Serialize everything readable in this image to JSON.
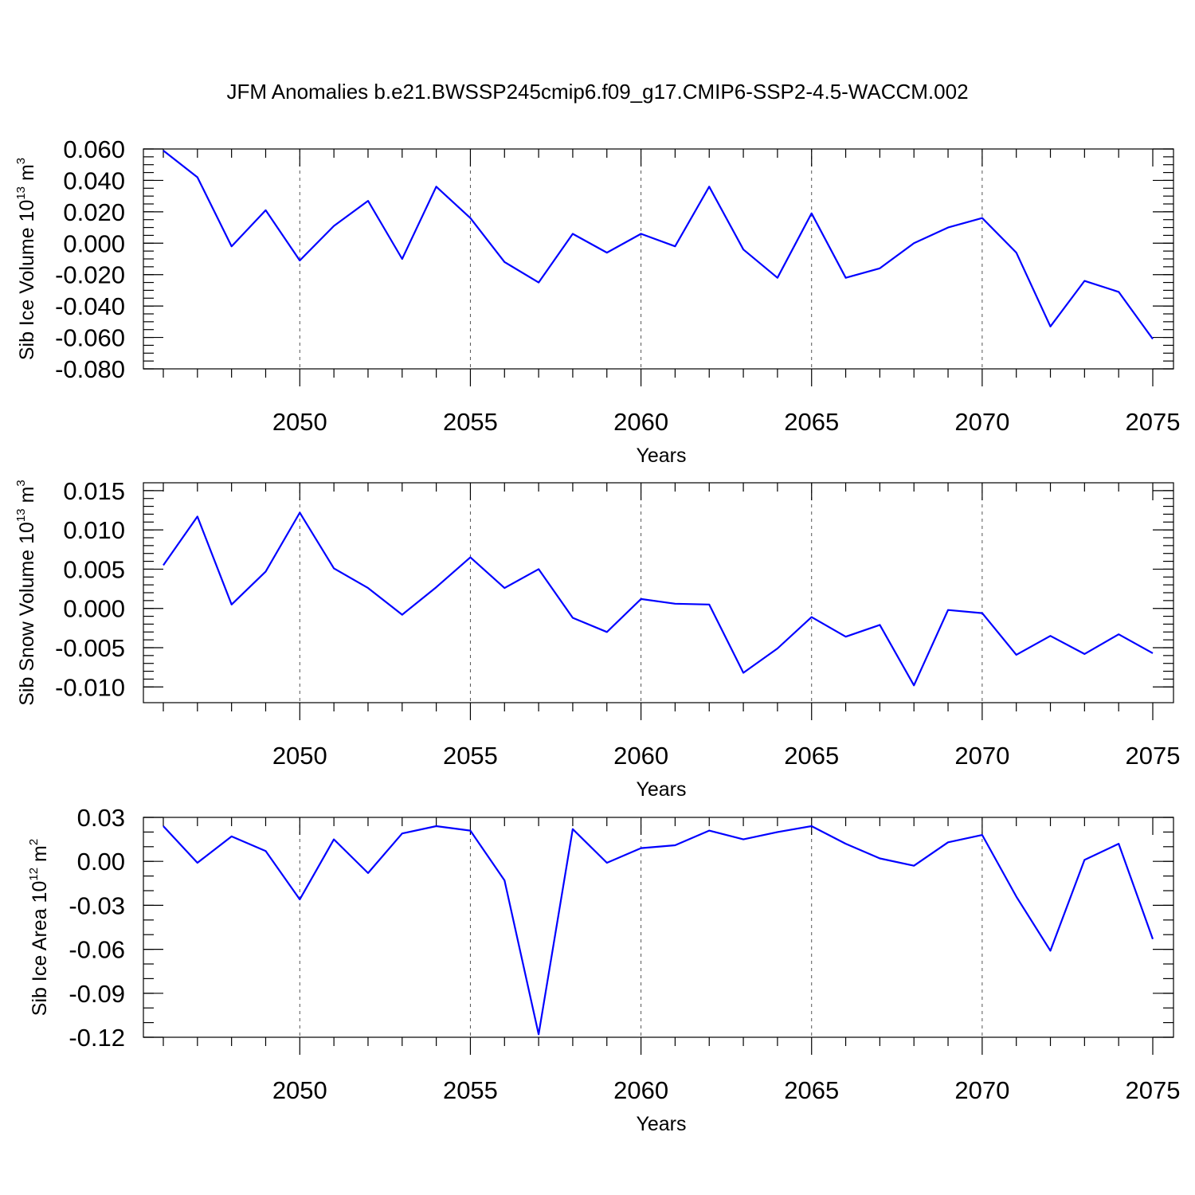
{
  "title": "JFM Anomalies b.e21.BWSSP245cmip6.f09_g17.CMIP6-SSP2-4.5-WACCM.002",
  "colors": {
    "line": "#0000ff",
    "axes": "#000000",
    "grid": "#555555"
  },
  "chart_data": [
    {
      "type": "line",
      "ylabel": {
        "text": "Sib Ice Volume 10",
        "exp": "13",
        "unit": " m",
        "unit_exp": "3"
      },
      "xlabel": "Years",
      "xlim": [
        2046,
        2075
      ],
      "ylim": [
        -0.08,
        0.06
      ],
      "grid": "vertical dashed at major x ticks",
      "x_ticks": [
        2050,
        2055,
        2060,
        2065,
        2070,
        2075
      ],
      "x_tick_labels": [
        "2050",
        "2055",
        "2060",
        "2065",
        "2070",
        "2075"
      ],
      "y_ticks": [
        0.06,
        0.04,
        0.02,
        0.0,
        -0.02,
        -0.04,
        -0.06,
        -0.08
      ],
      "y_tick_labels": [
        "0.060",
        "0.040",
        "0.020",
        "0.000",
        "-0.020",
        "-0.040",
        "-0.060",
        "-0.080"
      ],
      "y_minor_step": 0.005,
      "x": [
        2046,
        2047,
        2048,
        2049,
        2050,
        2051,
        2052,
        2053,
        2054,
        2055,
        2056,
        2057,
        2058,
        2059,
        2060,
        2061,
        2062,
        2063,
        2064,
        2065,
        2066,
        2067,
        2068,
        2069,
        2070,
        2071,
        2072,
        2073,
        2074,
        2075
      ],
      "series": [
        {
          "name": "Sib Ice Volume",
          "values": [
            0.059,
            0.042,
            -0.002,
            0.021,
            -0.011,
            0.011,
            0.027,
            -0.01,
            0.036,
            0.016,
            -0.012,
            -0.025,
            0.006,
            -0.006,
            0.006,
            -0.002,
            0.036,
            -0.004,
            -0.022,
            0.019,
            -0.022,
            -0.016,
            0.0,
            0.01,
            0.016,
            -0.006,
            -0.053,
            -0.024,
            -0.031,
            -0.061
          ]
        }
      ]
    },
    {
      "type": "line",
      "ylabel": {
        "text": "Sib Snow Volume 10",
        "exp": "13",
        "unit": " m",
        "unit_exp": "3"
      },
      "xlabel": "Years",
      "xlim": [
        2046,
        2075
      ],
      "ylim": [
        -0.012,
        0.016
      ],
      "grid": "vertical dashed at major x ticks",
      "x_ticks": [
        2050,
        2055,
        2060,
        2065,
        2070,
        2075
      ],
      "x_tick_labels": [
        "2050",
        "2055",
        "2060",
        "2065",
        "2070",
        "2075"
      ],
      "y_ticks": [
        0.015,
        0.01,
        0.005,
        0.0,
        -0.005,
        -0.01
      ],
      "y_tick_labels": [
        "0.015",
        "0.010",
        "0.005",
        "0.000",
        "-0.005",
        "-0.010"
      ],
      "y_minor_step": 0.001,
      "x": [
        2046,
        2047,
        2048,
        2049,
        2050,
        2051,
        2052,
        2053,
        2054,
        2055,
        2056,
        2057,
        2058,
        2059,
        2060,
        2061,
        2062,
        2063,
        2064,
        2065,
        2066,
        2067,
        2068,
        2069,
        2070,
        2071,
        2072,
        2073,
        2074,
        2075
      ],
      "series": [
        {
          "name": "Sib Snow Volume",
          "values": [
            0.0055,
            0.0117,
            0.0005,
            0.0047,
            0.0122,
            0.0051,
            0.0026,
            -0.0008,
            0.0027,
            0.0065,
            0.0026,
            0.005,
            -0.0012,
            -0.003,
            0.0012,
            0.0006,
            0.0005,
            -0.0082,
            -0.0051,
            -0.0011,
            -0.0036,
            -0.0021,
            -0.0098,
            -0.0002,
            -0.0006,
            -0.0059,
            -0.0035,
            -0.0058,
            -0.0033,
            -0.0057
          ]
        }
      ]
    },
    {
      "type": "line",
      "ylabel": {
        "text": "Sib Ice Area 10",
        "exp": "12",
        "unit": " m",
        "unit_exp": "2"
      },
      "xlabel": "Years",
      "xlim": [
        2046,
        2075
      ],
      "ylim": [
        -0.12,
        0.03
      ],
      "grid": "vertical dashed at major x ticks",
      "x_ticks": [
        2050,
        2055,
        2060,
        2065,
        2070,
        2075
      ],
      "x_tick_labels": [
        "2050",
        "2055",
        "2060",
        "2065",
        "2070",
        "2075"
      ],
      "y_ticks": [
        0.03,
        0.0,
        -0.03,
        -0.06,
        -0.09,
        -0.12
      ],
      "y_tick_labels": [
        "0.03",
        "0.00",
        "-0.03",
        "-0.06",
        "-0.09",
        "-0.12"
      ],
      "y_minor_step": 0.01,
      "x": [
        2046,
        2047,
        2048,
        2049,
        2050,
        2051,
        2052,
        2053,
        2054,
        2055,
        2056,
        2057,
        2058,
        2059,
        2060,
        2061,
        2062,
        2063,
        2064,
        2065,
        2066,
        2067,
        2068,
        2069,
        2070,
        2071,
        2072,
        2073,
        2074,
        2075
      ],
      "series": [
        {
          "name": "Sib Ice Area",
          "values": [
            0.024,
            -0.001,
            0.017,
            0.007,
            -0.026,
            0.015,
            -0.008,
            0.019,
            0.024,
            0.021,
            -0.013,
            -0.118,
            0.022,
            -0.001,
            0.009,
            0.011,
            0.021,
            0.015,
            0.02,
            0.024,
            0.012,
            0.002,
            -0.003,
            0.013,
            0.018,
            -0.024,
            -0.061,
            0.001,
            0.012,
            -0.053
          ]
        }
      ]
    }
  ]
}
